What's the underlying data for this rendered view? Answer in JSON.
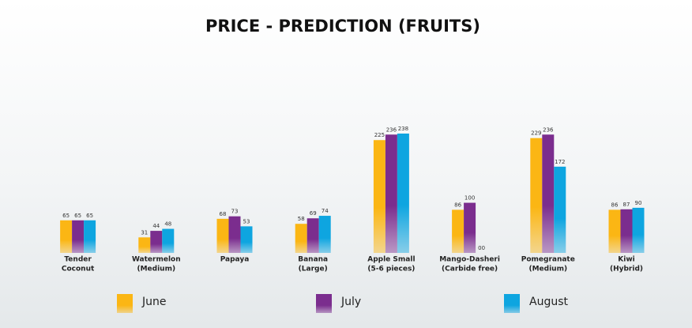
{
  "chart_data": {
    "type": "bar",
    "title": "PRICE -  PREDICTION (FRUITS)",
    "categories": [
      [
        "Tender",
        "Coconut"
      ],
      [
        "Watermelon",
        "(Medium)"
      ],
      [
        "Papaya"
      ],
      [
        "Banana",
        "(Large)"
      ],
      [
        "Apple Small",
        "(5-6 pieces)"
      ],
      [
        "Mango-Dasheri",
        "(Carbide free)"
      ],
      [
        "Pomegranate",
        "(Medium)"
      ],
      [
        "Kiwi",
        "(Hybrid)"
      ]
    ],
    "series": [
      {
        "name": "June",
        "color": "#fbb614",
        "values": [
          65,
          31,
          68,
          58,
          225,
          86,
          229,
          86
        ]
      },
      {
        "name": "July",
        "color": "#7b2d8e",
        "values": [
          65,
          44,
          73,
          69,
          236,
          100,
          236,
          87
        ]
      },
      {
        "name": "August",
        "color": "#0ea5e0",
        "values": [
          65,
          48,
          53,
          74,
          238,
          0,
          172,
          90
        ],
        "value_labels": [
          "65",
          "48",
          "53",
          "74",
          "238",
          "00",
          "172",
          "90"
        ]
      }
    ],
    "legend": "bottom"
  }
}
